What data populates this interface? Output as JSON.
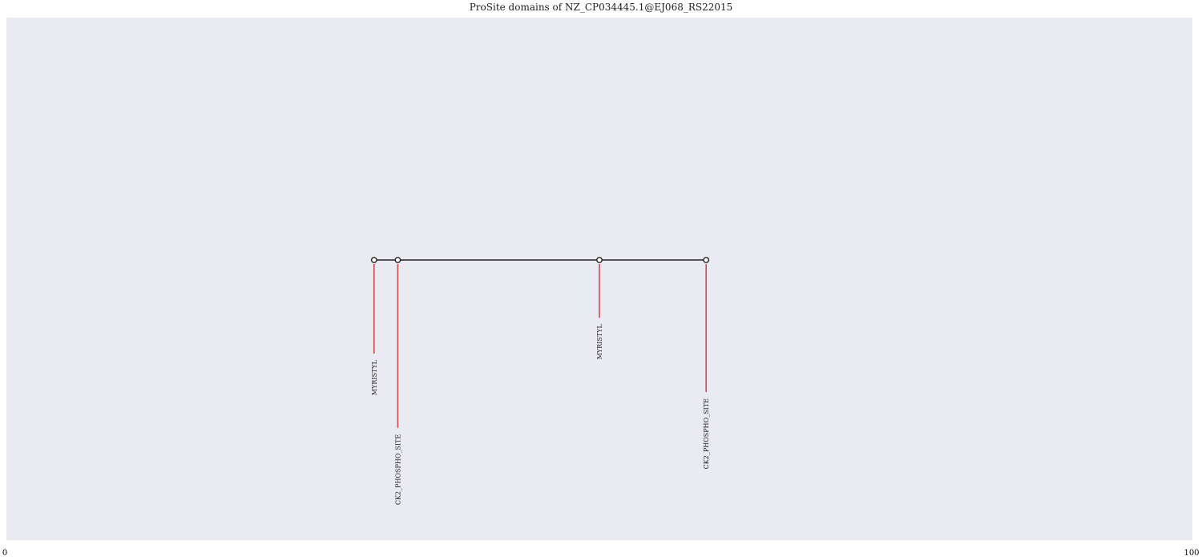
{
  "chart_data": {
    "type": "lollipop",
    "title": "ProSite domains of NZ_CP034445.1@EJ068_RS22015",
    "xlim": [
      0,
      100
    ],
    "x_tick_labels": [
      "0",
      "100"
    ],
    "grid": false,
    "backbone": {
      "start": 31,
      "end": 59
    },
    "sites": [
      {
        "name": "MYRISTYL",
        "position": 31,
        "stem_level": 0.35
      },
      {
        "name": "CK2_PHOSPHO_SITE",
        "position": 33,
        "stem_level": 0.64
      },
      {
        "name": "MYRISTYL",
        "position": 50,
        "stem_level": 0.21
      },
      {
        "name": "CK2_PHOSPHO_SITE",
        "position": 59,
        "stem_level": 0.5
      }
    ]
  },
  "colors": {
    "plot_background": "#e9eaf2",
    "backbone": "#222222",
    "stem": "#cc4b4b",
    "marker_fill": "#ffffff",
    "marker_edge": "#222222",
    "text": "#222222"
  }
}
